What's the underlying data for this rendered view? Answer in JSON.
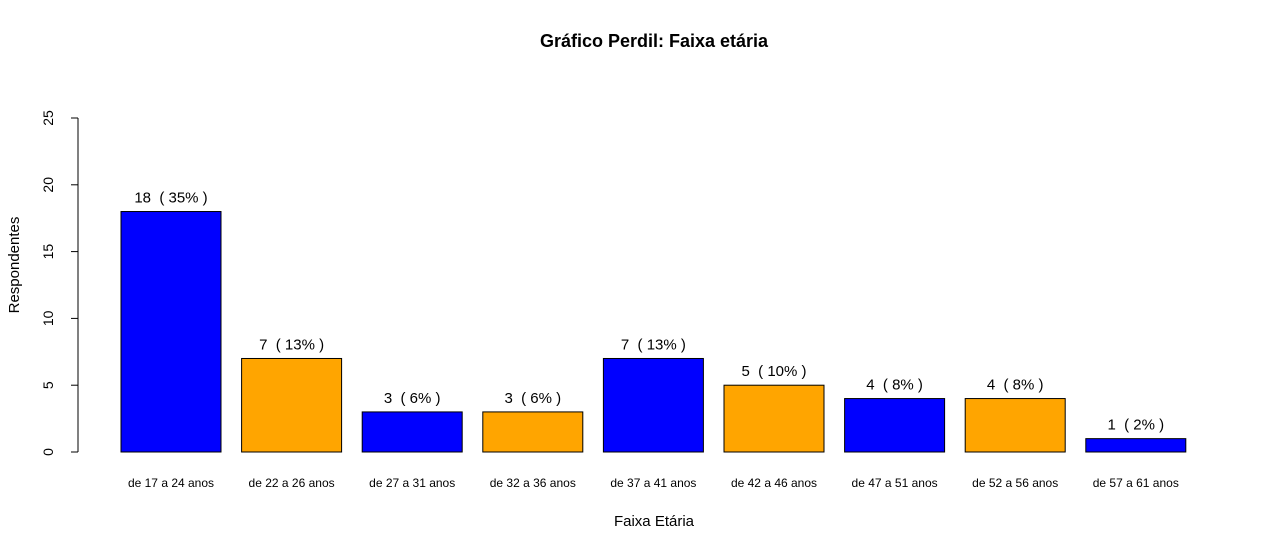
{
  "chart_data": {
    "type": "bar",
    "title": "Gráfico Perdil: Faixa etária",
    "xlabel": "Faixa Etária",
    "ylabel": "Respondentes",
    "ylim": [
      0,
      25
    ],
    "yticks": [
      0,
      5,
      10,
      15,
      20,
      25
    ],
    "categories": [
      "de 17 a 24 anos",
      "de 22 a 26 anos",
      "de 27 a 31 anos",
      "de 32 a 36 anos",
      "de 37 a 41 anos",
      "de 42 a 46 anos",
      "de 47 a 51 anos",
      "de 52 a 56 anos",
      "de 57 a 61 anos"
    ],
    "values": [
      18,
      7,
      3,
      3,
      7,
      5,
      4,
      4,
      1
    ],
    "value_labels": [
      "18  ( 35% )",
      "7  ( 13% )",
      "3  ( 6% )",
      "3  ( 6% )",
      "7  ( 13% )",
      "5  ( 10% )",
      "4  ( 8% )",
      "4  ( 8% )",
      "1  ( 2% )"
    ],
    "bar_colors": [
      "#0000ff",
      "#ffa500",
      "#0000ff",
      "#ffa500",
      "#0000ff",
      "#ffa500",
      "#0000ff",
      "#ffa500",
      "#0000ff"
    ],
    "grid": false,
    "legend": "none"
  }
}
